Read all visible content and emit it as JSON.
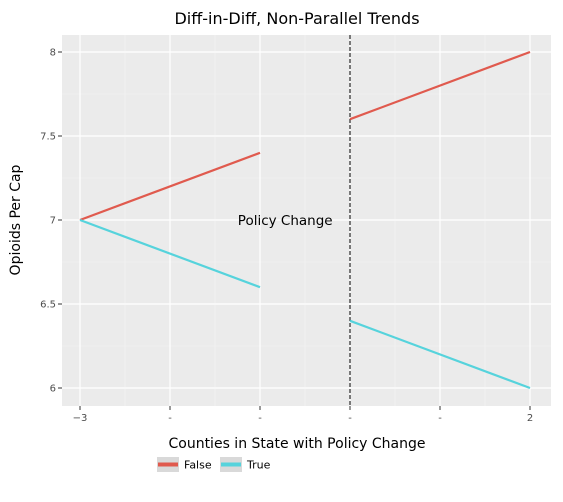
{
  "chart_data": {
    "type": "line",
    "title": "Diff-in-Diff, Non-Parallel Trends",
    "xlabel": "",
    "ylabel": "Opioids Per Cap",
    "xlim": [
      -3.0,
      2.0
    ],
    "ylim": [
      5.9,
      8.12
    ],
    "x_ticks": [
      {
        "value": -3,
        "label": "−3"
      },
      {
        "value": -2,
        "label": "-"
      },
      {
        "value": -1,
        "label": "-"
      },
      {
        "value": 0,
        "label": "-"
      },
      {
        "value": 1,
        "label": "-"
      },
      {
        "value": 2,
        "label": "2"
      }
    ],
    "y_ticks": [
      {
        "value": 6,
        "label": "6"
      },
      {
        "value": 6.5,
        "label": "6.5"
      },
      {
        "value": 7,
        "label": "7"
      },
      {
        "value": 7.5,
        "label": "7.5"
      },
      {
        "value": 8,
        "label": "8"
      }
    ],
    "series": [
      {
        "name": "False",
        "color": "#e05a4e",
        "segments": [
          [
            {
              "x": -3,
              "y": 7.0
            },
            {
              "x": -1,
              "y": 7.4
            }
          ],
          [
            {
              "x": 0,
              "y": 7.6
            },
            {
              "x": 2,
              "y": 8.0
            }
          ]
        ]
      },
      {
        "name": "True",
        "color": "#56d3dc",
        "segments": [
          [
            {
              "x": -3,
              "y": 7.0
            },
            {
              "x": -1,
              "y": 6.6
            }
          ],
          [
            {
              "x": 0,
              "y": 6.4
            },
            {
              "x": 2,
              "y": 6.0
            }
          ]
        ]
      }
    ],
    "vline": {
      "x": 0,
      "style": "dashed"
    },
    "annotations": [
      {
        "text": "Policy Change",
        "x": -0.72,
        "y": 7.0
      }
    ],
    "legend": {
      "title": "Counties in State with Policy Change",
      "position": "bottom",
      "entries": [
        "False",
        "True"
      ]
    },
    "grid": true,
    "panel_background": "#ebebeb"
  }
}
